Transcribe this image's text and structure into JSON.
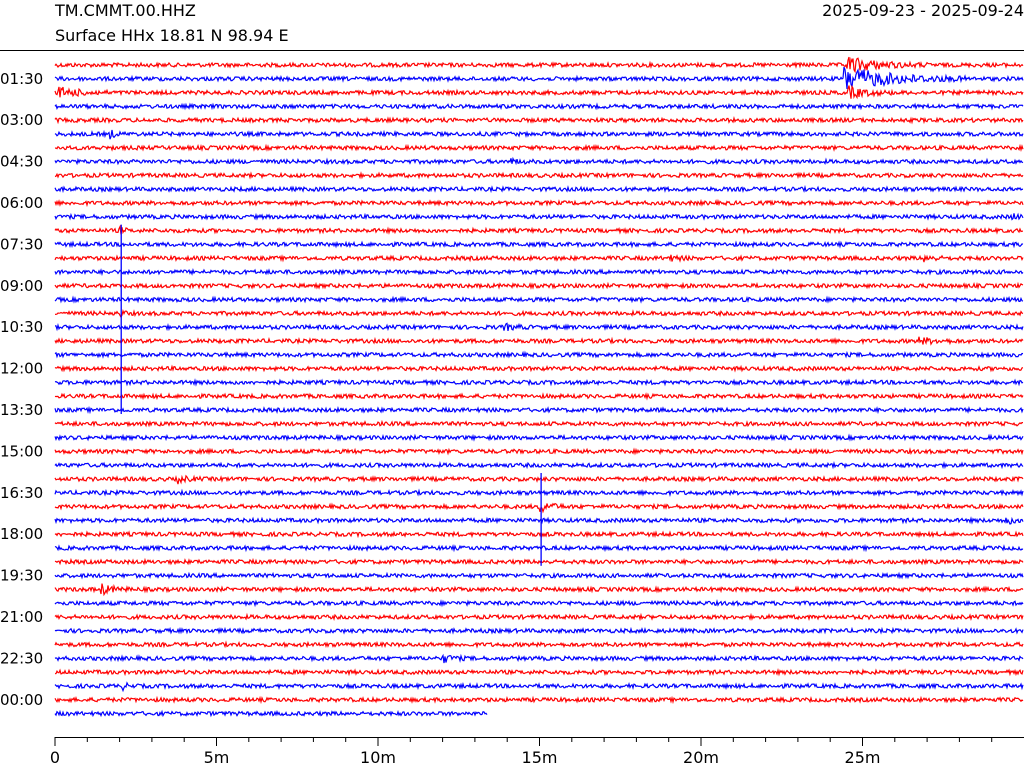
{
  "header": {
    "station": "TM.CMMT.00.HHZ",
    "info": "Surface HHx  18.81 N 98.94 E",
    "date_range": "2025-09-23 - 2025-09-24"
  },
  "colors": {
    "trace_a": "#ff0000",
    "trace_b": "#0000ff",
    "axis": "#000000"
  },
  "chart_data": {
    "type": "line",
    "title": "",
    "xlabel": "",
    "ylabel": "",
    "xlim_minutes": [
      0,
      30
    ],
    "x_tick_labels": [
      {
        "minute": 0,
        "label": "0"
      },
      {
        "minute": 5,
        "label": "5m"
      },
      {
        "minute": 10,
        "label": "10m"
      },
      {
        "minute": 15,
        "label": "15m"
      },
      {
        "minute": 20,
        "label": "20m"
      },
      {
        "minute": 25,
        "label": "25m"
      }
    ],
    "x_minor_tick_minutes": [
      1,
      2,
      3,
      4,
      6,
      7,
      8,
      9,
      11,
      12,
      13,
      14,
      16,
      17,
      18,
      19,
      21,
      22,
      23,
      24,
      26,
      27,
      28,
      29
    ],
    "row_minutes": 30,
    "row_count": 48,
    "last_row_end_minute": 13.4,
    "row_labels": [
      {
        "row": 1,
        "label": "01:30"
      },
      {
        "row": 4,
        "label": "03:00"
      },
      {
        "row": 7,
        "label": "04:30"
      },
      {
        "row": 10,
        "label": "06:00"
      },
      {
        "row": 13,
        "label": "07:30"
      },
      {
        "row": 16,
        "label": "09:00"
      },
      {
        "row": 19,
        "label": "10:30"
      },
      {
        "row": 22,
        "label": "12:00"
      },
      {
        "row": 25,
        "label": "13:30"
      },
      {
        "row": 28,
        "label": "15:00"
      },
      {
        "row": 31,
        "label": "16:30"
      },
      {
        "row": 34,
        "label": "18:00"
      },
      {
        "row": 37,
        "label": "19:30"
      },
      {
        "row": 40,
        "label": "21:00"
      },
      {
        "row": 43,
        "label": "22:30"
      },
      {
        "row": 46,
        "label": "00:00"
      }
    ],
    "row_colors": [
      "red",
      "blue"
    ],
    "events": [
      {
        "row": 0,
        "minute": 24.5,
        "amp": 4.0,
        "dur": 2.5
      },
      {
        "row": 1,
        "minute": 24.4,
        "amp": 6.0,
        "dur": 4.0
      },
      {
        "row": 2,
        "minute": 0.1,
        "amp": 2.5,
        "dur": 1.6
      },
      {
        "row": 2,
        "minute": 24.5,
        "amp": 3.0,
        "dur": 1.5
      },
      {
        "row": 5,
        "minute": 1.7,
        "amp": 2.0,
        "dur": 0.4
      },
      {
        "row": 7,
        "minute": 14.0,
        "amp": 1.3,
        "dur": 0.8
      },
      {
        "row": 11,
        "minute": 29.6,
        "amp": 2.2,
        "dur": 0.4
      },
      {
        "row": 12,
        "minute": 2.0,
        "amp": 2.4,
        "dur": 0.3
      },
      {
        "row": 14,
        "minute": 18.9,
        "amp": 1.4,
        "dur": 1.0
      },
      {
        "row": 14,
        "minute": 26.9,
        "amp": 1.4,
        "dur": 0.8
      },
      {
        "row": 18,
        "minute": 2.0,
        "amp": 2.0,
        "dur": 0.3
      },
      {
        "row": 19,
        "minute": 13.9,
        "amp": 1.4,
        "dur": 0.9
      },
      {
        "row": 20,
        "minute": 26.7,
        "amp": 1.5,
        "dur": 1.5
      },
      {
        "row": 30,
        "minute": 3.8,
        "amp": 1.6,
        "dur": 0.8
      },
      {
        "row": 32,
        "minute": 15.0,
        "amp": 2.8,
        "dur": 0.9
      },
      {
        "row": 33,
        "minute": 29.4,
        "amp": 2.2,
        "dur": 0.6
      },
      {
        "row": 38,
        "minute": 1.4,
        "amp": 2.6,
        "dur": 0.9
      },
      {
        "row": 43,
        "minute": 12.0,
        "amp": 1.8,
        "dur": 0.8
      },
      {
        "row": 45,
        "minute": 2.1,
        "amp": 1.5,
        "dur": 0.4
      }
    ],
    "spikes": [
      {
        "row_from": 12,
        "row_to": 25,
        "minute": 2.05
      },
      {
        "row_from": 30,
        "row_to": 36,
        "minute": 15.05
      }
    ]
  }
}
